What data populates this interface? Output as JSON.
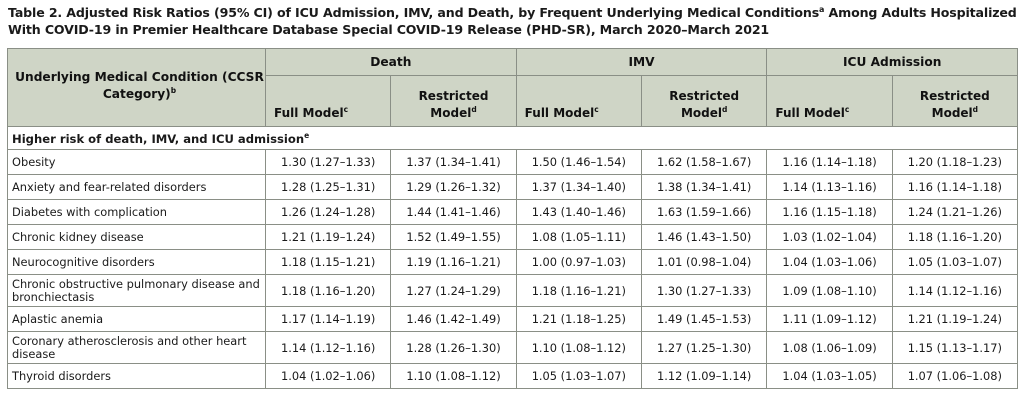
{
  "caption": {
    "line1_pre": "Table 2. Adjusted Risk Ratios (95% CI) of ICU Admission, IMV, and Death, by Frequent Underlying Medical Conditions",
    "line1_sup": "a",
    "line1_post": " Among Adults Hospitalized With COVID-19 in Premier Healthcare Database Special COVID-19 Release (PHD-SR), March 2020–March 2021"
  },
  "header": {
    "condition_label": "Underlying Medical Condition (CCSR Category)",
    "condition_sup": "b",
    "groups": [
      "Death",
      "IMV",
      "ICU Admission"
    ],
    "full_model": "Full Model",
    "full_sup": "c",
    "restricted_model_1": "Restricted",
    "restricted_model_2": "Model",
    "restricted_sup": "d"
  },
  "section": {
    "label": "Higher risk of death, IMV, and ICU admission",
    "sup": "e"
  },
  "rows": [
    {
      "condition": "Obesity",
      "values": [
        "1.30 (1.27–1.33)",
        "1.37 (1.34–1.41)",
        "1.50 (1.46–1.54)",
        "1.62 (1.58–1.67)",
        "1.16 (1.14–1.18)",
        "1.20 (1.18–1.23)"
      ]
    },
    {
      "condition": "Anxiety and fear-related disorders",
      "values": [
        "1.28 (1.25–1.31)",
        "1.29 (1.26–1.32)",
        "1.37 (1.34–1.40)",
        "1.38 (1.34–1.41)",
        "1.14 (1.13–1.16)",
        "1.16 (1.14–1.18)"
      ]
    },
    {
      "condition": "Diabetes with complication",
      "values": [
        "1.26 (1.24–1.28)",
        "1.44 (1.41–1.46)",
        "1.43 (1.40–1.46)",
        "1.63 (1.59–1.66)",
        "1.16 (1.15–1.18)",
        "1.24 (1.21–1.26)"
      ]
    },
    {
      "condition": "Chronic kidney disease",
      "values": [
        "1.21 (1.19–1.24)",
        "1.52 (1.49–1.55)",
        "1.08 (1.05–1.11)",
        "1.46 (1.43–1.50)",
        "1.03 (1.02–1.04)",
        "1.18 (1.16–1.20)"
      ]
    },
    {
      "condition": "Neurocognitive disorders",
      "values": [
        "1.18 (1.15–1.21)",
        "1.19 (1.16–1.21)",
        "1.00 (0.97–1.03)",
        "1.01 (0.98–1.04)",
        "1.04 (1.03–1.06)",
        "1.05 (1.03–1.07)"
      ]
    },
    {
      "condition": "Chronic obstructive pulmonary disease and bronchiectasis",
      "values": [
        "1.18 (1.16–1.20)",
        "1.27 (1.24–1.29)",
        "1.18 (1.16–1.21)",
        "1.30 (1.27–1.33)",
        "1.09 (1.08–1.10)",
        "1.14 (1.12–1.16)"
      ]
    },
    {
      "condition": "Aplastic anemia",
      "values": [
        "1.17 (1.14–1.19)",
        "1.46 (1.42–1.49)",
        "1.21 (1.18–1.25)",
        "1.49 (1.45–1.53)",
        "1.11 (1.09–1.12)",
        "1.21 (1.19–1.24)"
      ]
    },
    {
      "condition": "Coronary atherosclerosis and other heart disease",
      "values": [
        "1.14 (1.12–1.16)",
        "1.28 (1.26–1.30)",
        "1.10 (1.08–1.12)",
        "1.27 (1.25–1.30)",
        "1.08 (1.06–1.09)",
        "1.15 (1.13–1.17)"
      ]
    },
    {
      "condition": "Thyroid disorders",
      "values": [
        "1.04 (1.02–1.06)",
        "1.10 (1.08–1.12)",
        "1.05 (1.03–1.07)",
        "1.12 (1.09–1.14)",
        "1.04 (1.03–1.05)",
        "1.07 (1.06–1.08)"
      ]
    }
  ]
}
